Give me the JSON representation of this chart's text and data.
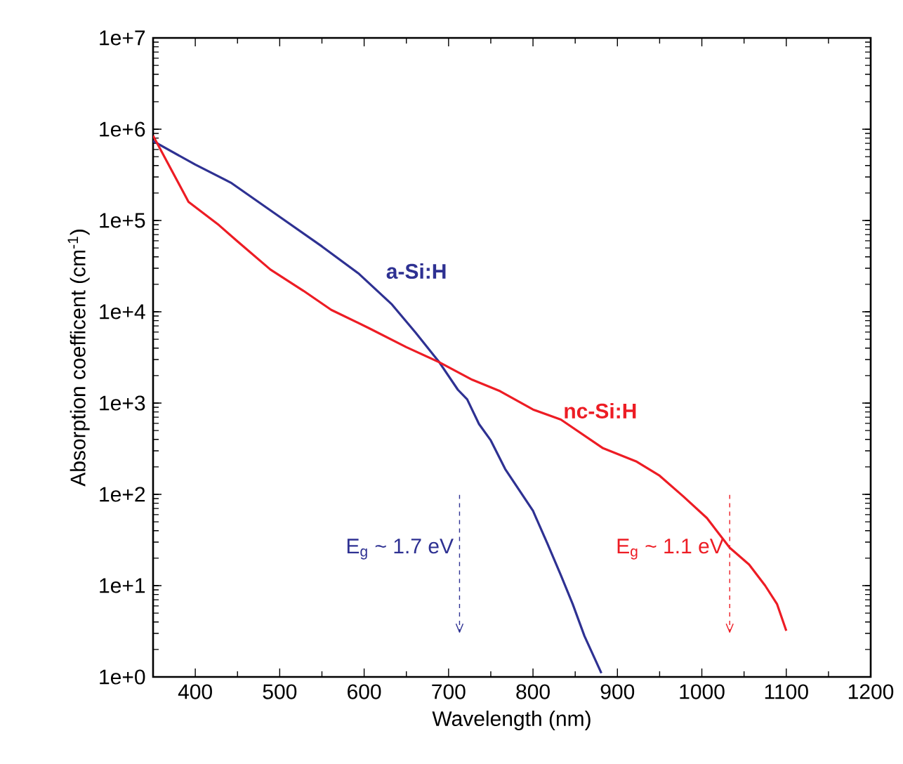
{
  "chart_data": {
    "type": "line",
    "xlabel": "Wavelength (nm)",
    "ylabel": "Absorption coefficent (cm$^{-1}$)",
    "log": "y",
    "xlim": [
      350,
      1200
    ],
    "xticks": [
      400,
      500,
      600,
      700,
      800,
      900,
      1000,
      1100,
      1200
    ],
    "ylim": [
      1,
      10000000
    ],
    "yticks": [
      {
        "value": 1,
        "label": "1e+0"
      },
      {
        "value": 10,
        "label": "1e+1"
      },
      {
        "value": 100,
        "label": "1e+2"
      },
      {
        "value": 1000,
        "label": "1e+3"
      },
      {
        "value": 10000,
        "label": "1e+4"
      },
      {
        "value": 100000,
        "label": "1e+5"
      },
      {
        "value": 1000000,
        "label": "1e+6"
      },
      {
        "value": 10000000,
        "label": "1e+7"
      }
    ],
    "grid": false,
    "marker": "none",
    "line_style": "solid",
    "series": [
      {
        "name": "a-Si:H",
        "color": "#2e3192",
        "x": [
          350,
          400,
          442,
          494,
          550,
          594,
          633,
          661,
          689,
          711,
          722,
          736,
          750,
          767,
          800,
          817,
          833,
          847,
          861,
          881
        ],
        "values": [
          740000,
          410000,
          260000,
          120000,
          52000,
          26000,
          12000,
          5900,
          2800,
          1400,
          1100,
          590,
          390,
          190,
          66,
          29,
          13,
          6.3,
          2.8,
          1.1
        ]
      },
      {
        "name": "nc-Si:H",
        "color": "#ed1c24",
        "x": [
          350,
          392,
          428,
          450,
          489,
          528,
          561,
          606,
          650,
          689,
          728,
          761,
          800,
          833,
          883,
          922,
          950,
          978,
          1006,
          1033,
          1056,
          1075,
          1089,
          1100
        ],
        "values": [
          850000,
          160000,
          89000,
          59000,
          29000,
          17000,
          10500,
          6600,
          4100,
          2800,
          1800,
          1350,
          850,
          660,
          320,
          230,
          160,
          95,
          55,
          26,
          17,
          10,
          6.3,
          3.2
        ]
      }
    ],
    "ref_lines": [
      {
        "axis": "x",
        "value": 713,
        "label": "E$_{g}$ ~ 1.7 eV",
        "color": "#2e3192",
        "line_style": "dashed"
      },
      {
        "axis": "x",
        "value": 1033,
        "label": "E$_{g}$ ~ 1.1 eV",
        "color": "#ed1c24",
        "line_style": "dashed"
      }
    ]
  }
}
